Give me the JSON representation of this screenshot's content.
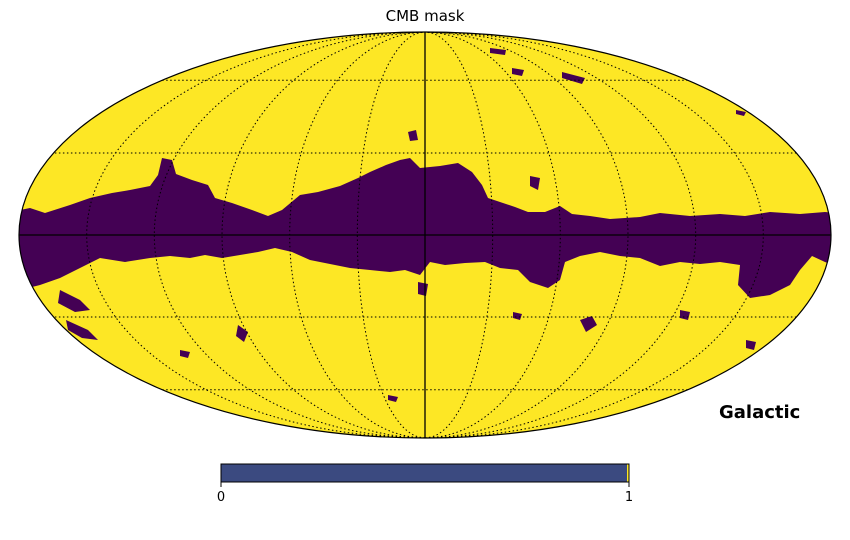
{
  "chart_data": {
    "type": "heatmap",
    "projection": "mollweide",
    "title": "CMB mask",
    "coord_system": "Galactic",
    "graticule": true,
    "colormap": "viridis",
    "value_range": [
      0,
      1
    ],
    "values_present": [
      0,
      1
    ],
    "colors": {
      "masked": "#440154",
      "unmasked": "#fde725",
      "colorbar_fill": "#3b4a80"
    },
    "colorbar": {
      "ticks": [
        "0",
        "1"
      ],
      "min": 0,
      "max": 1,
      "orientation": "horizontal"
    }
  }
}
